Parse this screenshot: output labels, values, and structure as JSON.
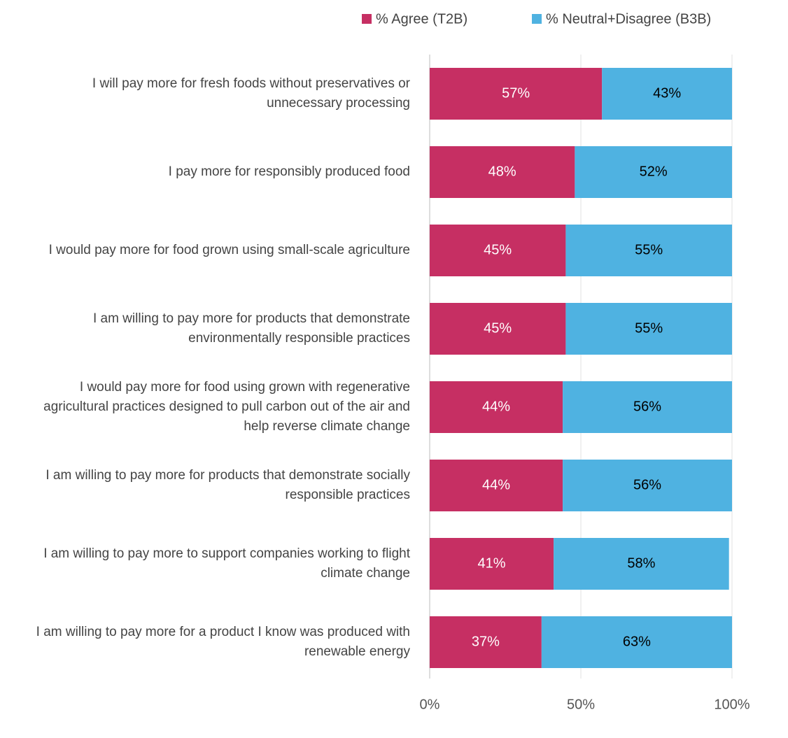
{
  "chart_data": {
    "type": "stacked-barh",
    "categories": [
      "I will pay more for fresh foods without preservatives or unnecessary processing",
      "I pay more for responsibly produced food",
      "I would pay more for food grown using small-scale agriculture",
      "I am willing to pay more for products that demonstrate environmentally responsible practices",
      "I would pay more for food using grown with regenerative agricultural practices designed to pull carbon out of the air and help reverse climate change",
      "I am willing to pay more for products that demonstrate socially responsible practices",
      "I am willing to pay more to support companies working to flight climate change",
      "I am willing to pay more for a product I know was produced with renewable energy"
    ],
    "series": [
      {
        "name": "% Agree (T2B)",
        "color": "#c62f63",
        "label_color": "#ffffff",
        "values": [
          57,
          48,
          45,
          45,
          44,
          44,
          41,
          37
        ],
        "value_labels": [
          "57%",
          "48%",
          "45%",
          "45%",
          "44%",
          "44%",
          "41%",
          "37%"
        ]
      },
      {
        "name": "% Neutral+Disagree (B3B)",
        "color": "#4fb2e1",
        "label_color": "#000000",
        "values": [
          43,
          52,
          55,
          55,
          56,
          56,
          58,
          63
        ],
        "value_labels": [
          "43%",
          "52%",
          "55%",
          "55%",
          "56%",
          "56%",
          "58%",
          "63%"
        ]
      }
    ],
    "xlim": [
      0,
      100
    ],
    "xticks": [
      {
        "value": 0,
        "label": "0%"
      },
      {
        "value": 50,
        "label": "50%"
      },
      {
        "value": 100,
        "label": "100%"
      }
    ],
    "grid": true,
    "legend": "top"
  }
}
